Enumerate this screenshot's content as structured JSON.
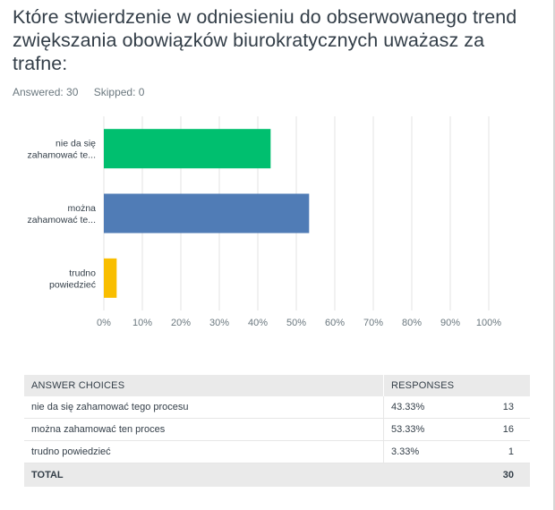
{
  "question": {
    "title": "Które stwierdzenie w odniesieniu do obserwowanego trend zwiększania obowiązków biurokratycznych uważasz za trafne:",
    "answered": "Answered: 30",
    "skipped": "Skipped: 0"
  },
  "chart_data": {
    "type": "bar",
    "orientation": "horizontal",
    "categories": [
      [
        "nie da się",
        "zahamować te..."
      ],
      [
        "można",
        "zahamować te..."
      ],
      [
        "trudno",
        "powiedzieć"
      ]
    ],
    "values": [
      43.33,
      53.33,
      3.33
    ],
    "colors": [
      "#00bf6f",
      "#507cb6",
      "#f9be00"
    ],
    "xlim": [
      0,
      100
    ],
    "xticks": [
      "0%",
      "10%",
      "20%",
      "30%",
      "40%",
      "50%",
      "60%",
      "70%",
      "80%",
      "90%",
      "100%"
    ],
    "grid": true
  },
  "table": {
    "headers": [
      "ANSWER CHOICES",
      "RESPONSES"
    ],
    "rows": [
      {
        "choice": "nie da się zahamować tego procesu",
        "percent": "43.33%",
        "count": "13"
      },
      {
        "choice": "można zahamować ten proces",
        "percent": "53.33%",
        "count": "16"
      },
      {
        "choice": "trudno powiedzieć",
        "percent": "3.33%",
        "count": "1"
      }
    ],
    "total_label": "TOTAL",
    "total_count": "30"
  }
}
